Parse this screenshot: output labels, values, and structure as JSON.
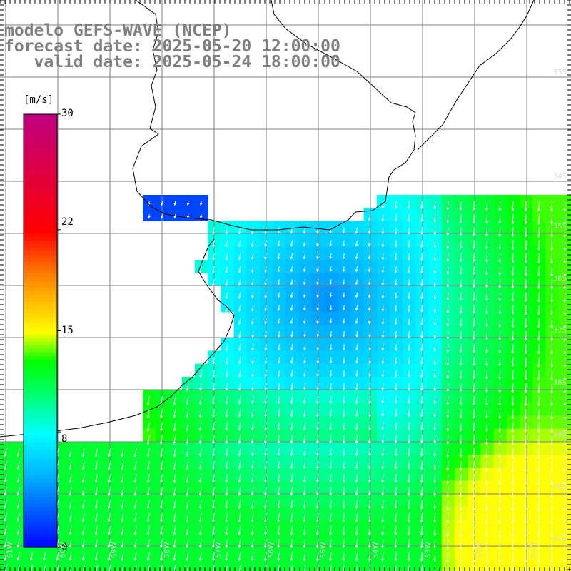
{
  "title": {
    "line1": "modelo GEFS-WAVE (NCEP)",
    "line2": "forecast date: 2025-05-20 12:00:00",
    "line3": "   valid date: 2025-05-24 18:00:00"
  },
  "colorbar": {
    "unit": "[m/s]",
    "ticks": [
      {
        "value": 30,
        "label": "30"
      },
      {
        "value": 22,
        "label": "22"
      },
      {
        "value": 15,
        "label": "15"
      },
      {
        "value": 8,
        "label": "8"
      },
      {
        "value": 0,
        "label": "0"
      }
    ],
    "min": 0,
    "max": 30,
    "colors": {
      "0": "#0000ff",
      "5": "#00b0ff",
      "8": "#00ffff",
      "11": "#00ff60",
      "13": "#00ff00",
      "15": "#ffff00",
      "19": "#ff8000",
      "22": "#ff0000",
      "30": "#c00080"
    }
  },
  "map": {
    "variable": "wind speed and direction",
    "lat_labels": [
      "33S",
      "34S",
      "35S",
      "36S",
      "37S",
      "38S",
      "39S",
      "40S",
      "41S"
    ],
    "lon_labels": [
      "61W",
      "60W",
      "59W",
      "58W",
      "57W",
      "56W",
      "55W",
      "54W",
      "53W",
      "52W",
      "51W"
    ],
    "colors": {
      "land": "#ffffff",
      "coast": "#000000",
      "grid": "#808080",
      "arrow": "#ffffff"
    }
  }
}
